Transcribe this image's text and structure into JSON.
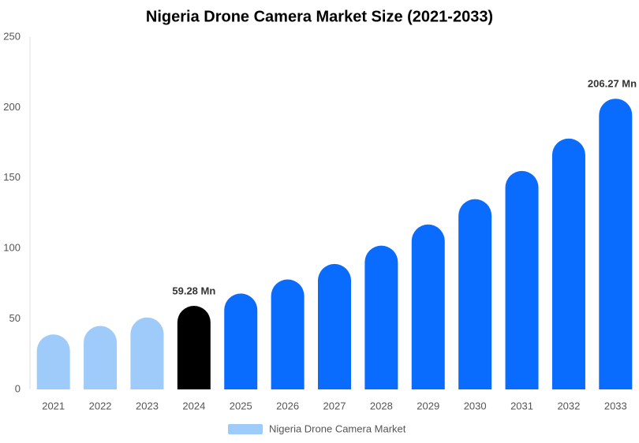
{
  "chart_data": {
    "type": "bar",
    "title": "Nigeria Drone Camera Market Size (2021-2033)",
    "categories": [
      "2021",
      "2022",
      "2023",
      "2024",
      "2025",
      "2026",
      "2027",
      "2028",
      "2029",
      "2030",
      "2031",
      "2032",
      "2033"
    ],
    "series": [
      {
        "name": "Nigeria Drone Camera Market",
        "color": "#9ecbfa",
        "colors": [
          "#9ecbfa",
          "#9ecbfa",
          "#9ecbfa",
          "#000000",
          "#0a6cff",
          "#0a6cff",
          "#0a6cff",
          "#0a6cff",
          "#0a6cff",
          "#0a6cff",
          "#0a6cff",
          "#0a6cff",
          "#0a6cff"
        ],
        "values": [
          39,
          45,
          51,
          59.28,
          68,
          78,
          89,
          102,
          117,
          135,
          155,
          178,
          206.27
        ],
        "value_labels": [
          null,
          null,
          null,
          "59.28 Mn",
          null,
          null,
          null,
          null,
          null,
          null,
          null,
          null,
          "206.27 Mn"
        ]
      }
    ],
    "ylim": [
      0,
      250
    ],
    "yticks": [
      0,
      50,
      100,
      150,
      200,
      250
    ],
    "grid": false,
    "legend": "bottom"
  }
}
